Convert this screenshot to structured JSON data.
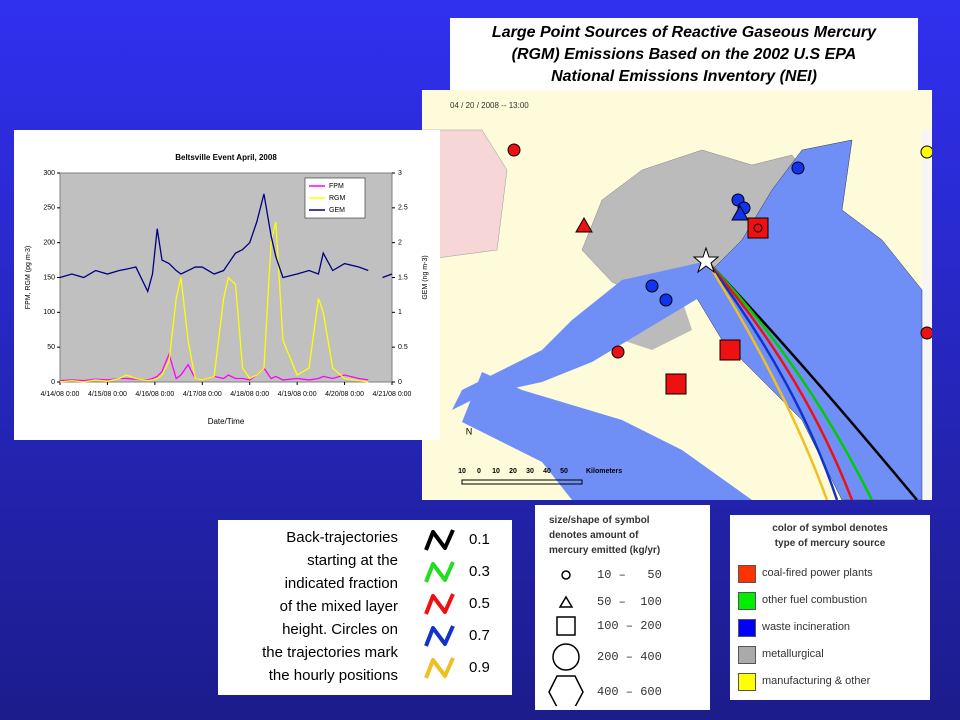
{
  "chart_data": {
    "type": "line",
    "title": "Beltsville Event April, 2008",
    "xlabel": "Date/Time",
    "ylabel": "FPM, RGM (pg m-3)",
    "y2label": "GEM (ng m-3)",
    "x": [
      0,
      0.25,
      0.5,
      0.75,
      1,
      1.25,
      1.4,
      1.6,
      1.85,
      1.95,
      2.05,
      2.15,
      2.3,
      2.45,
      2.55,
      2.7,
      2.85,
      3,
      3.25,
      3.45,
      3.55,
      3.7,
      3.85,
      4,
      4.15,
      4.3,
      4.45,
      4.55,
      4.7,
      5,
      5.25,
      5.45,
      5.55,
      5.75,
      6,
      6.3,
      6.5,
      6.65,
      6.8,
      7
    ],
    "xlim": [
      0,
      7
    ],
    "xticks": [
      {
        "value": 0,
        "label": "4/14/08 0:00"
      },
      {
        "value": 1,
        "label": "4/15/08 0:00"
      },
      {
        "value": 2,
        "label": "4/16/08 0:00"
      },
      {
        "value": 3,
        "label": "4/17/08 0:00"
      },
      {
        "value": 4,
        "label": "4/18/08 0:00"
      },
      {
        "value": 5,
        "label": "4/19/08 0:00"
      },
      {
        "value": 6,
        "label": "4/20/08 0:00"
      },
      {
        "value": 7,
        "label": "4/21/08 0:00"
      }
    ],
    "ylim": [
      0,
      300
    ],
    "yticks": [
      0,
      50,
      100,
      150,
      200,
      250,
      300
    ],
    "y2lim": [
      0,
      3
    ],
    "y2ticks": [
      0,
      0.5,
      1,
      1.5,
      2,
      2.5,
      3
    ],
    "series": [
      {
        "name": "FPM",
        "color": "#ff00ff",
        "values": [
          2,
          3,
          2,
          4,
          3,
          5,
          5,
          4,
          3,
          5,
          8,
          15,
          40,
          5,
          10,
          25,
          5,
          3,
          8,
          5,
          10,
          5,
          5,
          3,
          10,
          20,
          5,
          8,
          3,
          5,
          3,
          5,
          8,
          5,
          10,
          5,
          3,
          null,
          null,
          null
        ]
      },
      {
        "name": "RGM",
        "color": "#ffff00",
        "values": [
          0,
          2,
          0,
          3,
          1,
          5,
          10,
          5,
          2,
          3,
          5,
          10,
          30,
          120,
          150,
          60,
          5,
          3,
          8,
          120,
          150,
          140,
          20,
          5,
          10,
          20,
          200,
          230,
          60,
          10,
          20,
          120,
          100,
          20,
          5,
          2,
          0,
          null,
          null,
          null
        ]
      },
      {
        "name": "GEM",
        "color": "#000080",
        "axis": "y2",
        "values": [
          1.5,
          1.55,
          1.5,
          1.6,
          1.55,
          1.6,
          1.62,
          1.65,
          1.3,
          1.55,
          2.2,
          1.75,
          1.7,
          1.6,
          1.55,
          1.6,
          1.65,
          1.65,
          1.55,
          1.6,
          1.7,
          1.85,
          1.9,
          2.0,
          2.3,
          2.7,
          2.1,
          1.8,
          1.5,
          1.55,
          1.6,
          1.55,
          1.85,
          1.6,
          1.7,
          1.65,
          1.6,
          null,
          1.5,
          1.55
        ]
      }
    ]
  },
  "map": {
    "title_lines": [
      "Large Point Sources of Reactive Gaseous Mercury",
      "(RGM) Emissions Based on the 2002 U.S EPA",
      "National Emissions Inventory (NEI)"
    ],
    "timestamp": "04 / 20 / 2008 -- 13:00",
    "north": "N",
    "scale_labels": [
      "10",
      "0",
      "10",
      "20",
      "30",
      "40",
      "50"
    ],
    "scale_unit": "Kilometers"
  },
  "trajectory_legend": {
    "text_lines": [
      "Back-trajectories",
      "starting at the",
      "indicated fraction",
      "of the mixed layer",
      "height. Circles on",
      "the trajectories mark",
      "the hourly positions"
    ],
    "fractions": [
      "0.1",
      "0.3",
      "0.5",
      "0.7",
      "0.9"
    ]
  },
  "size_legend": {
    "header_lines": [
      "size/shape of symbol",
      "denotes amount of",
      "mercury emitted (kg/yr)"
    ],
    "ranges": [
      "10 –   50",
      "50 –  100",
      "100 – 200",
      "200 – 400",
      "400 – 600"
    ]
  },
  "color_legend": {
    "header_lines": [
      "color of symbol denotes",
      "type of mercury source"
    ],
    "items": [
      {
        "label": "coal-fired power plants",
        "color": "#ff3300"
      },
      {
        "label": "other fuel combustion",
        "color": "#00ee00"
      },
      {
        "label": "waste incineration",
        "color": "#0000ff"
      },
      {
        "label": "metallurgical",
        "color": "#aaaaaa"
      },
      {
        "label": "manufacturing & other",
        "color": "#ffff00"
      }
    ]
  }
}
